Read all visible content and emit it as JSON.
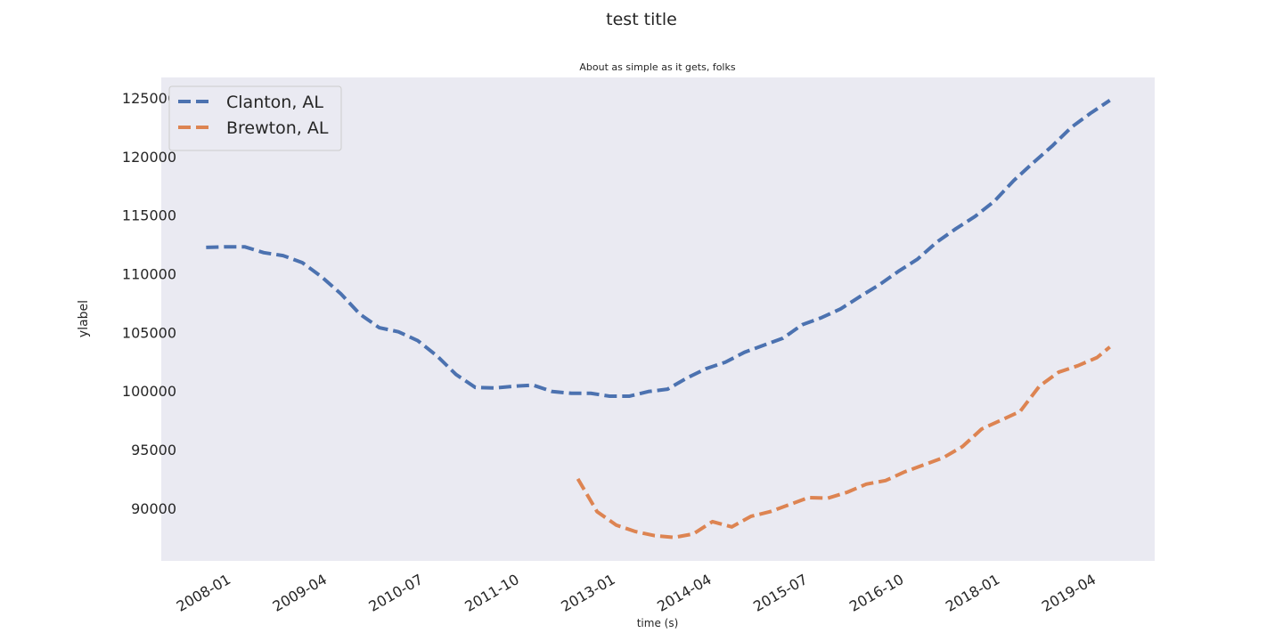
{
  "chart_data": {
    "type": "line",
    "title": "test title",
    "subtitle": "About as simple as it gets, folks",
    "xlabel": "time (s)",
    "ylabel": "ylabel",
    "legend": "upper left",
    "grid": false,
    "line_style": "dashed",
    "xlim": [
      "2007-02",
      "2020-01"
    ],
    "xticks": [
      "2008-01",
      "2009-04",
      "2010-07",
      "2011-10",
      "2013-01",
      "2014-04",
      "2015-07",
      "2016-10",
      "2018-01",
      "2019-04"
    ],
    "ylim": [
      85500,
      126750
    ],
    "yticks": [
      90000,
      95000,
      100000,
      105000,
      110000,
      115000,
      120000,
      125000
    ],
    "series": [
      {
        "name": "Clanton, AL",
        "color": "#4c72b0",
        "x": [
          "2007-09",
          "2007-12",
          "2008-03",
          "2008-06",
          "2008-09",
          "2008-12",
          "2009-03",
          "2009-06",
          "2009-09",
          "2009-12",
          "2010-03",
          "2010-06",
          "2010-09",
          "2010-12",
          "2011-03",
          "2011-06",
          "2011-09",
          "2011-12",
          "2012-03",
          "2012-06",
          "2012-09",
          "2012-12",
          "2013-03",
          "2013-06",
          "2013-09",
          "2013-12",
          "2014-03",
          "2014-06",
          "2014-09",
          "2014-12",
          "2015-03",
          "2015-06",
          "2015-09",
          "2015-12",
          "2016-03",
          "2016-06",
          "2016-09",
          "2016-12",
          "2017-03",
          "2017-06",
          "2017-09",
          "2017-12",
          "2018-03",
          "2018-06",
          "2018-09",
          "2018-12",
          "2019-03",
          "2019-06"
        ],
        "values": [
          112250,
          112300,
          112300,
          111800,
          111550,
          110950,
          109750,
          108300,
          106550,
          105400,
          105050,
          104300,
          103000,
          101400,
          100300,
          100250,
          100400,
          100500,
          99950,
          99800,
          99800,
          99550,
          99550,
          99950,
          100150,
          101100,
          101900,
          102450,
          103300,
          103900,
          104500,
          105650,
          106250,
          107000,
          108050,
          109050,
          110200,
          111250,
          112700,
          113850,
          114900,
          116200,
          117950,
          119450,
          120900,
          122500,
          123700,
          124800
        ]
      },
      {
        "name": "Brewton, AL",
        "color": "#dd8452",
        "x": [
          "2012-07",
          "2012-10",
          "2013-01",
          "2013-04",
          "2013-07",
          "2013-10",
          "2014-01",
          "2014-04",
          "2014-07",
          "2014-10",
          "2015-01",
          "2015-04",
          "2015-07",
          "2015-10",
          "2016-01",
          "2016-04",
          "2016-07",
          "2016-10",
          "2017-01",
          "2017-04",
          "2017-07",
          "2017-10",
          "2018-01",
          "2018-04",
          "2018-07",
          "2018-10",
          "2019-01",
          "2019-04",
          "2019-06"
        ],
        "values": [
          92500,
          89700,
          88550,
          88000,
          87650,
          87500,
          87800,
          88850,
          88400,
          89300,
          89700,
          90300,
          90900,
          90850,
          91350,
          92050,
          92350,
          93100,
          93700,
          94300,
          95250,
          96750,
          97500,
          98250,
          100400,
          101600,
          102150,
          102850,
          103750
        ]
      }
    ]
  }
}
